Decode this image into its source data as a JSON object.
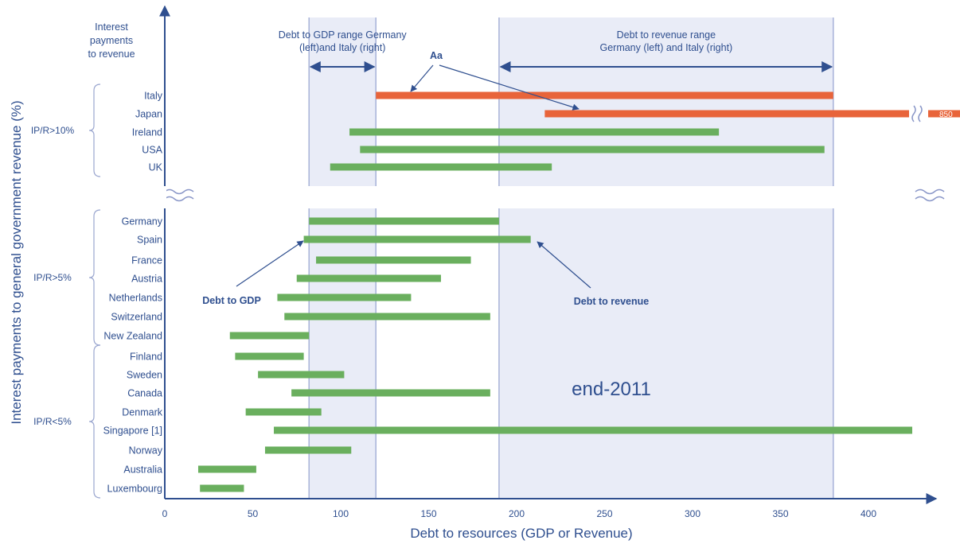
{
  "chart_data": {
    "type": "bar",
    "subtype": "horizontal-range",
    "xlabel": "Debt to resources (GDP or Revenue)",
    "ylabel": "Interest payments to general government revenue (%)",
    "y_axis_title": "Interest payments to revenue",
    "x_ticks": [
      0,
      50,
      100,
      150,
      200,
      250,
      300,
      350,
      400
    ],
    "xlim": [
      0,
      430
    ],
    "annotation_period": "end-2011",
    "groups": [
      {
        "label": "IP/R>10%",
        "members": [
          "Italy",
          "Japan",
          "Ireland",
          "USA",
          "UK"
        ]
      },
      {
        "label": "IP/R>5%",
        "members": [
          "Germany",
          "Spain",
          "France",
          "Austria",
          "Netherlands",
          "Switzerland",
          "New Zealand"
        ]
      },
      {
        "label": "IP/R<5%",
        "members": [
          "Finland",
          "Sweden",
          "Canada",
          "Denmark",
          "Singapore [1]",
          "Norway",
          "Australia",
          "Luxembourg"
        ]
      }
    ],
    "series": [
      {
        "name": "Debt to GDP",
        "note": "left end of bar"
      },
      {
        "name": "Debt to revenue",
        "note": "right end of bar"
      }
    ],
    "rows": [
      {
        "country": "Italy",
        "debt_to_gdp": 120,
        "debt_to_revenue": 380,
        "highlight": true
      },
      {
        "country": "Japan",
        "debt_to_gdp": 216,
        "debt_to_revenue": 850,
        "highlight": true,
        "truncated": true,
        "truncated_label": "850"
      },
      {
        "country": "Ireland",
        "debt_to_gdp": 105,
        "debt_to_revenue": 315
      },
      {
        "country": "USA",
        "debt_to_gdp": 111,
        "debt_to_revenue": 375
      },
      {
        "country": "UK",
        "debt_to_gdp": 94,
        "debt_to_revenue": 220
      },
      {
        "country": "Germany",
        "debt_to_gdp": 82,
        "debt_to_revenue": 190
      },
      {
        "country": "Spain",
        "debt_to_gdp": 79,
        "debt_to_revenue": 208
      },
      {
        "country": "France",
        "debt_to_gdp": 86,
        "debt_to_revenue": 174
      },
      {
        "country": "Austria",
        "debt_to_gdp": 75,
        "debt_to_revenue": 157
      },
      {
        "country": "Netherlands",
        "debt_to_gdp": 64,
        "debt_to_revenue": 140
      },
      {
        "country": "Switzerland",
        "debt_to_gdp": 68,
        "debt_to_revenue": 185
      },
      {
        "country": "New Zealand",
        "debt_to_gdp": 37,
        "debt_to_revenue": 82
      },
      {
        "country": "Finland",
        "debt_to_gdp": 40,
        "debt_to_revenue": 79
      },
      {
        "country": "Sweden",
        "debt_to_gdp": 53,
        "debt_to_revenue": 102
      },
      {
        "country": "Canada",
        "debt_to_gdp": 72,
        "debt_to_revenue": 185
      },
      {
        "country": "Denmark",
        "debt_to_gdp": 46,
        "debt_to_revenue": 89
      },
      {
        "country": "Singapore [1]",
        "debt_to_gdp": 62,
        "debt_to_revenue": 425
      },
      {
        "country": "Norway",
        "debt_to_gdp": 57,
        "debt_to_revenue": 106
      },
      {
        "country": "Australia",
        "debt_to_gdp": 19,
        "debt_to_revenue": 52
      },
      {
        "country": "Luxembourg",
        "debt_to_gdp": 20,
        "debt_to_revenue": 45
      }
    ],
    "ranges": [
      {
        "label": "Debt to GDP range Germany\n(left)and Italy (right)",
        "from": 82,
        "to": 120
      },
      {
        "label": "Debt to revenue range\nGermany (left) and Italy (right)",
        "from": 190,
        "to": 380
      }
    ],
    "annotations": [
      "Aa",
      "Debt to GDP",
      "Debt to revenue"
    ],
    "grid": false,
    "colors": {
      "bar": "#6aaf5e",
      "highlight": "#e8643a",
      "axis": "#2f4f8f",
      "label": "#2f4f8f",
      "band": "#e9ecf7",
      "band_line": "#a7b2d8"
    }
  }
}
